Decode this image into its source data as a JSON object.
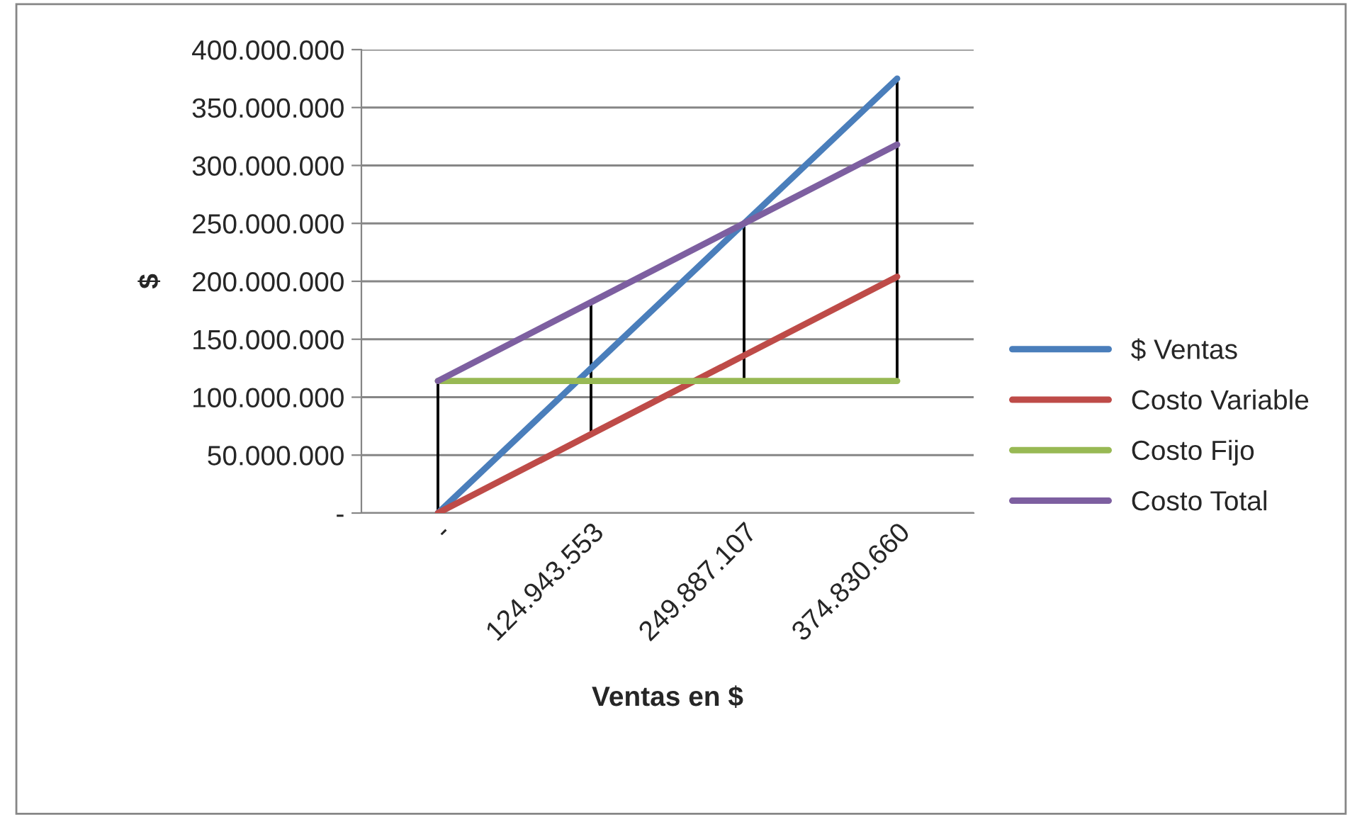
{
  "chart_data": {
    "type": "line",
    "xlabel": "Ventas en $",
    "ylabel": "$",
    "categories": [
      "-",
      "124.943.553",
      "249.887.107",
      "374.830.660"
    ],
    "series": [
      {
        "name": "$ Ventas",
        "color": "#4a7ebb",
        "values": [
          0,
          125000000,
          250000000,
          375000000
        ]
      },
      {
        "name": "Costo Variable",
        "color": "#be4b48",
        "values": [
          0,
          68000000,
          136000000,
          204000000
        ]
      },
      {
        "name": "Costo Fijo",
        "color": "#98b954",
        "values": [
          114000000,
          114000000,
          114000000,
          114000000
        ]
      },
      {
        "name": "Costo Total",
        "color": "#7d5fa0",
        "values": [
          114000000,
          182000000,
          250000000,
          318000000
        ]
      },
      {
        "type": "bar",
        "color": "#000000",
        "base": [
          0,
          68000000,
          114000000,
          114000000
        ],
        "values": [
          114000000,
          114000000,
          136000000,
          261000000
        ]
      }
    ],
    "ylim": [
      0,
      400000000
    ],
    "yticks": [
      {
        "value": 0,
        "label": "-"
      },
      {
        "value": 50000000,
        "label": "50.000.000"
      },
      {
        "value": 100000000,
        "label": "100.000.000"
      },
      {
        "value": 150000000,
        "label": "150.000.000"
      },
      {
        "value": 200000000,
        "label": "200.000.000"
      },
      {
        "value": 250000000,
        "label": "250.000.000"
      },
      {
        "value": 300000000,
        "label": "300.000.000"
      },
      {
        "value": 350000000,
        "label": "350.000.000"
      },
      {
        "value": 400000000,
        "label": "400.000.000"
      }
    ],
    "grid": "y",
    "legend": "right",
    "marker": "none",
    "line_style": "solid"
  }
}
